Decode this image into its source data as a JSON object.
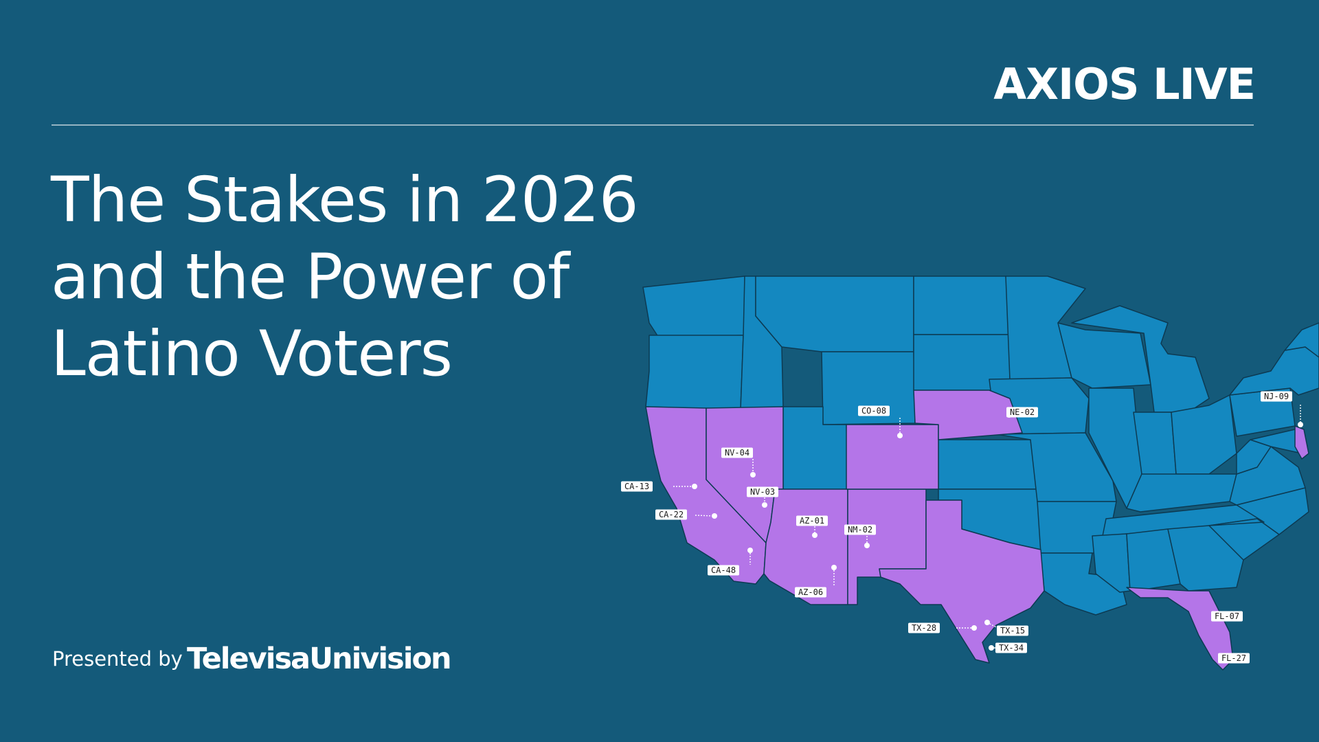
{
  "header": {
    "brand": "AXIOS LIVE"
  },
  "title_lines": [
    "The Stakes in 2026",
    "and the Power of",
    "Latino Voters"
  ],
  "footer": {
    "presented_by": "Presented by",
    "sponsor": "TelevisaUnivision"
  },
  "map": {
    "colors": {
      "background": "#145a7a",
      "base_states": "#1488c0",
      "highlighted_states": "#b475e8",
      "borders": "#0d3a52"
    },
    "highlighted_states": [
      "California",
      "Nevada",
      "Arizona",
      "New Mexico",
      "Colorado",
      "Nebraska",
      "Texas",
      "Florida",
      "New Jersey"
    ],
    "districts": [
      "CA-13",
      "CA-22",
      "CA-48",
      "NV-04",
      "NV-03",
      "AZ-01",
      "AZ-06",
      "NM-02",
      "CO-08",
      "NE-02",
      "TX-28",
      "TX-15",
      "TX-34",
      "FL-07",
      "FL-27",
      "NJ-09"
    ]
  }
}
